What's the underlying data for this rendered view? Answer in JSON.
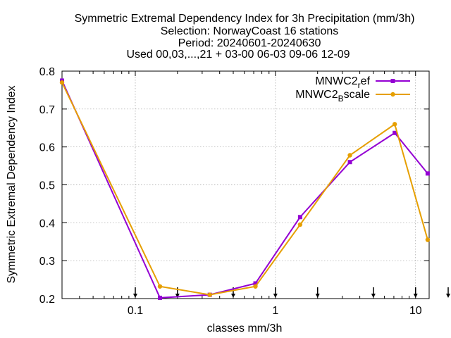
{
  "chart_data": {
    "type": "line",
    "title_lines": [
      "Symmetric Extremal Dependency Index  for 3h Precipitation (mm/3h)",
      "Selection: NorwayCoast     16 stations",
      "Period: 20240601-20240630",
      "Used 00,03,...,21 + 03-00 06-03 09-06 12-09"
    ],
    "xlabel": "classes mm/3h",
    "ylabel": "Symmetric Extremal Dependency Index",
    "x_scale": "log",
    "xlim": [
      0.03,
      12.5
    ],
    "ylim": [
      0.2,
      0.8
    ],
    "x_ticks": [
      {
        "value": 0.1,
        "label": "0.1"
      },
      {
        "value": 1,
        "label": "1"
      },
      {
        "value": 10,
        "label": "10"
      }
    ],
    "y_ticks": [
      {
        "value": 0.2,
        "label": "0.2"
      },
      {
        "value": 0.3,
        "label": "0.3"
      },
      {
        "value": 0.4,
        "label": "0.4"
      },
      {
        "value": 0.5,
        "label": "0.5"
      },
      {
        "value": 0.6,
        "label": "0.6"
      },
      {
        "value": 0.7,
        "label": "0.7"
      },
      {
        "value": 0.8,
        "label": "0.8"
      }
    ],
    "grid": true,
    "legend_position": "top-right",
    "threshold_markers": [
      0.1,
      0.2,
      0.5,
      1,
      2,
      5,
      10,
      20
    ],
    "series": [
      {
        "name": "MNWC2_ref",
        "legend_base": "MNWC2",
        "legend_sub": "r",
        "legend_tail": "ef",
        "color": "#9400d3",
        "marker": "square",
        "x": [
          0.03,
          0.15,
          0.34,
          0.72,
          1.5,
          3.4,
          7.1,
          12.2
        ],
        "y": [
          0.775,
          0.202,
          0.21,
          0.24,
          0.415,
          0.56,
          0.637,
          0.53
        ]
      },
      {
        "name": "MNWC2_Bscale",
        "legend_base": "MNWC2",
        "legend_sub": "B",
        "legend_tail": "scale",
        "color": "#e69f00",
        "marker": "circle",
        "x": [
          0.03,
          0.15,
          0.34,
          0.72,
          1.5,
          3.4,
          7.1,
          12.2
        ],
        "y": [
          0.77,
          0.232,
          0.21,
          0.232,
          0.395,
          0.578,
          0.66,
          0.355
        ]
      }
    ]
  }
}
